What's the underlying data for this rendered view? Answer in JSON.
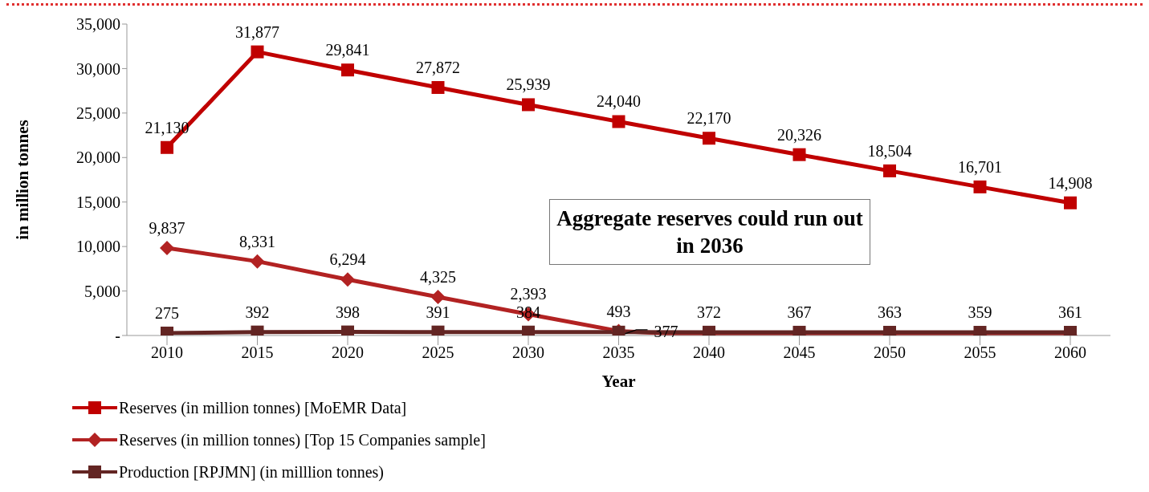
{
  "chart_data": {
    "type": "line",
    "xlabel": "Year",
    "ylabel": "in million tonnes",
    "categories": [
      "2010",
      "2015",
      "2020",
      "2025",
      "2030",
      "2035",
      "2040",
      "2045",
      "2050",
      "2055",
      "2060"
    ],
    "series": [
      {
        "name": "Reserves (in million tonnes) [MoEMR Data]",
        "color": "#c00000",
        "marker": "square",
        "values": [
          21130,
          31877,
          29841,
          27872,
          25939,
          24040,
          22170,
          20326,
          18504,
          16701,
          14908
        ],
        "value_labels": [
          "21,130",
          "31,877",
          "29,841",
          "27,872",
          "25,939",
          "24,040",
          "22,170",
          "20,326",
          "18,504",
          "16,701",
          "14,908"
        ]
      },
      {
        "name": "Reserves (in million tonnes) [Top 15 Companies sample]",
        "color": "#b22222",
        "marker": "diamond",
        "values": [
          9837,
          8331,
          6294,
          4325,
          2393,
          493,
          0,
          0,
          0,
          0,
          0
        ],
        "value_labels": [
          "9,837",
          "8,331",
          "6,294",
          "4,325",
          "2,393",
          "493",
          null,
          null,
          null,
          null,
          null
        ]
      },
      {
        "name": "Production [RPJMN] (in milllion tonnes)",
        "color": "#632523",
        "marker": "square",
        "values": [
          275,
          392,
          398,
          391,
          384,
          377,
          372,
          367,
          363,
          359,
          361
        ],
        "value_labels": [
          "275",
          "392",
          "398",
          "391",
          "384",
          "377",
          "372",
          "367",
          "363",
          "359",
          "361"
        ]
      }
    ],
    "ylim": [
      0,
      35000
    ],
    "yticks": [
      {
        "value": 0,
        "label": "-"
      },
      {
        "value": 5000,
        "label": "5,000"
      },
      {
        "value": 10000,
        "label": "10,000"
      },
      {
        "value": 15000,
        "label": "15,000"
      },
      {
        "value": 20000,
        "label": "20,000"
      },
      {
        "value": 25000,
        "label": "25,000"
      },
      {
        "value": 30000,
        "label": "30,000"
      },
      {
        "value": 35000,
        "label": "35,000"
      }
    ],
    "grid": false,
    "legend": "bottom",
    "line_style": "solid",
    "annotations": [
      "Aggregate reserves could run out in 2036"
    ]
  }
}
